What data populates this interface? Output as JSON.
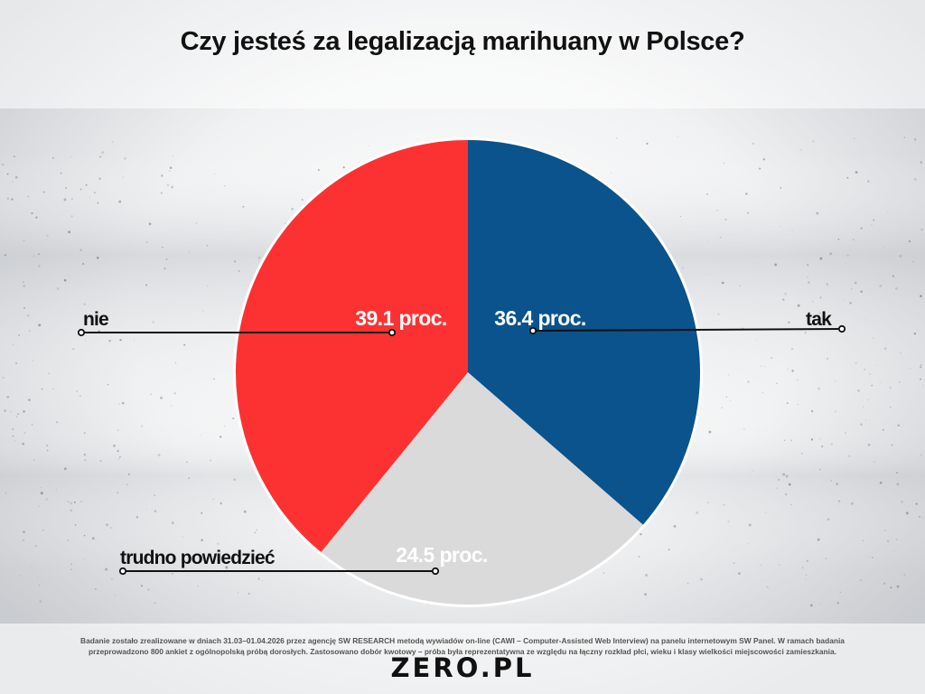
{
  "title": "Czy jesteś za legalizacją marihuany w Polsce?",
  "footnote": {
    "line1": "Badanie zostało zrealizowane w dniach 31.03–01.04.2026 przez agencję SW RESEARCH metodą wywiadów on-line (CAWI – Computer-Assisted Web Interview) na panelu internetowym SW Panel. W ramach badania",
    "line2": "przeprowadzono 800 ankiet z ogólnopolską próbą dorosłych. Zastosowano dobór kwotowy – próba była reprezentatywna ze względu na łączny rozkład płci, wieku i klasy wielkości miejscowości zamieszkania."
  },
  "logo": "ZERO.PL",
  "colors": {
    "tak": "#0a538c",
    "nie": "#fc3232",
    "trudno": "#dadada",
    "text": "#111111"
  },
  "chart_data": {
    "type": "pie",
    "title": "Czy jesteś za legalizacją marihuany w Polsce?",
    "slices": [
      {
        "label": "tak",
        "value": 36.4,
        "value_label": "36.4 proc.",
        "color": "#0a538c"
      },
      {
        "label": "trudno powiedzieć",
        "value": 24.5,
        "value_label": "24.5 proc.",
        "color": "#dadada"
      },
      {
        "label": "nie",
        "value": 39.1,
        "value_label": "39.1 proc.",
        "color": "#fc3232"
      }
    ],
    "start": "12 o'clock",
    "direction": "clockwise",
    "legend": "none"
  }
}
